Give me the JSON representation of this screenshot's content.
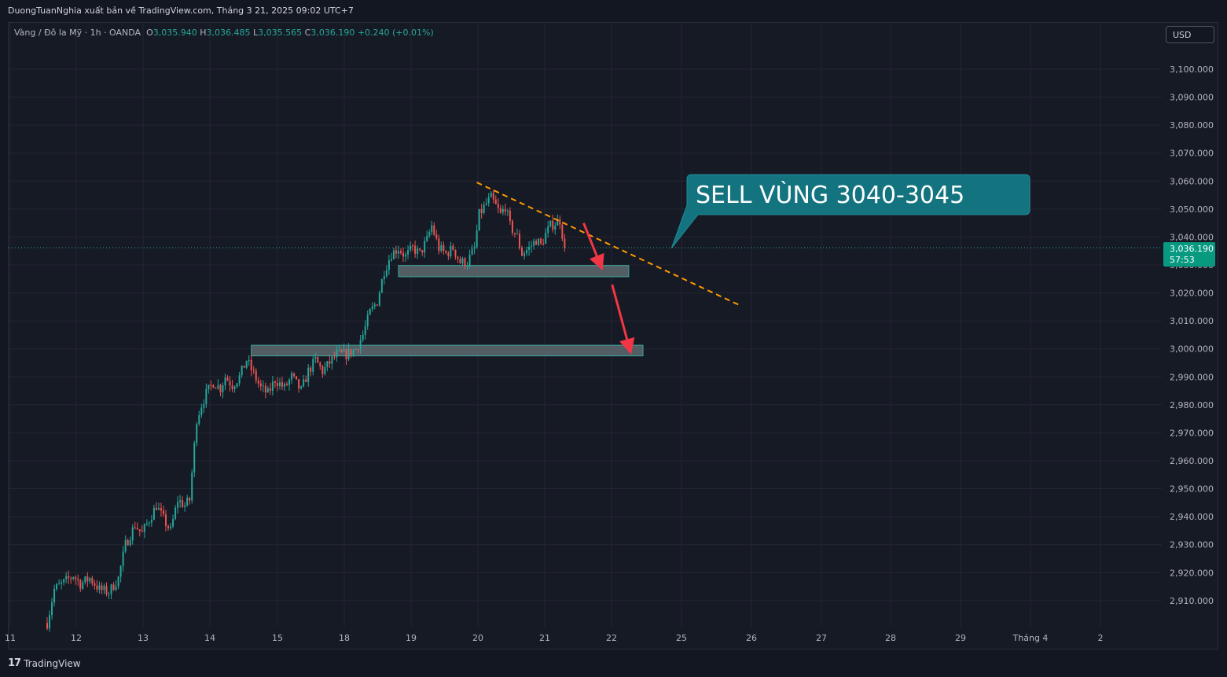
{
  "header": {
    "publisher_line": "DuongTuanNghia xuất bản về TradingView.com, Tháng 3 21, 2025 09:02 UTC+7"
  },
  "legend": {
    "symbol": "Vàng / Đô la Mỹ · 1h · OANDA",
    "o_label": "O",
    "o_value": "3,035.940",
    "h_label": "H",
    "h_value": "3,036.485",
    "l_label": "L",
    "l_value": "3,035.565",
    "c_label": "C",
    "c_value": "3,036.190",
    "change": "+0.240 (+0.01%)"
  },
  "currency_button": "USD",
  "price_tag": {
    "price": "3,036.190",
    "countdown": "57:53"
  },
  "annotation": {
    "callout_text": "SELL VÙNG 3040-3045"
  },
  "footer": {
    "brand": "TradingView"
  },
  "colors": {
    "up": "#26a69a",
    "down": "#ef5350",
    "background": "#161a25",
    "callout": "#137480",
    "trendline": "#ff9800",
    "arrow": "#f23645",
    "zone_fill": "#5d6a70"
  },
  "chart_data": {
    "type": "candlestick",
    "title": "",
    "xlabel": "",
    "ylabel": "",
    "ylim": [
      2900,
      3105
    ],
    "y_ticks": [
      2910,
      2920,
      2930,
      2940,
      2950,
      2960,
      2970,
      2980,
      2990,
      3000,
      3010,
      3020,
      3030,
      3040,
      3050,
      3060,
      3070,
      3080,
      3090,
      3100
    ],
    "y_tick_labels": [
      "2,910.000",
      "2,920.000",
      "2,930.000",
      "2,940.000",
      "2,950.000",
      "2,960.000",
      "2,970.000",
      "2,980.000",
      "2,990.000",
      "3,000.000",
      "3,010.000",
      "3,020.000",
      "3,030.000",
      "3,040.000",
      "3,050.000",
      "3,060.000",
      "3,070.000",
      "3,080.000",
      "3,090.000",
      "3,100.000"
    ],
    "x_ticks": [
      "11",
      "12",
      "13",
      "14",
      "15",
      "18",
      "19",
      "20",
      "21",
      "22",
      "25",
      "26",
      "27",
      "28",
      "29",
      "Tháng 4",
      "2"
    ],
    "current_price": 3036.19,
    "close_path": [
      [
        0,
        2902
      ],
      [
        3,
        2914
      ],
      [
        8,
        2917
      ],
      [
        11,
        2919
      ],
      [
        14,
        2916
      ],
      [
        18,
        2918
      ],
      [
        22,
        2914
      ],
      [
        26,
        2913
      ],
      [
        30,
        2918
      ],
      [
        33,
        2930
      ],
      [
        37,
        2937
      ],
      [
        40,
        2934
      ],
      [
        43,
        2939
      ],
      [
        46,
        2944
      ],
      [
        49,
        2939
      ],
      [
        52,
        2935
      ],
      [
        55,
        2946
      ],
      [
        58,
        2944
      ],
      [
        60,
        2946
      ],
      [
        63,
        2975
      ],
      [
        65,
        2980
      ],
      [
        67,
        2984
      ],
      [
        70,
        2988
      ],
      [
        73,
        2986
      ],
      [
        75,
        2990
      ],
      [
        78,
        2987
      ],
      [
        81,
        2990
      ],
      [
        84,
        2996
      ],
      [
        87,
        2991
      ],
      [
        90,
        2986
      ],
      [
        93,
        2984
      ],
      [
        96,
        2989
      ],
      [
        100,
        2986
      ],
      [
        103,
        2990
      ],
      [
        107,
        2985
      ],
      [
        110,
        2992
      ],
      [
        113,
        2996
      ],
      [
        116,
        2992
      ],
      [
        119,
        2995
      ],
      [
        122,
        2998
      ],
      [
        126,
        2998
      ],
      [
        130,
        3000
      ],
      [
        133,
        3005
      ],
      [
        136,
        3013
      ],
      [
        139,
        3017
      ],
      [
        142,
        3028
      ],
      [
        145,
        3034
      ],
      [
        148,
        3036
      ],
      [
        151,
        3033
      ],
      [
        154,
        3036
      ],
      [
        157,
        3034
      ],
      [
        160,
        3039
      ],
      [
        162,
        3044
      ],
      [
        165,
        3036
      ],
      [
        168,
        3034
      ],
      [
        171,
        3036
      ],
      [
        174,
        3031
      ],
      [
        177,
        3031
      ],
      [
        180,
        3036
      ],
      [
        182,
        3048
      ],
      [
        185,
        3052
      ],
      [
        187,
        3054
      ],
      [
        189,
        3051
      ],
      [
        191,
        3048
      ],
      [
        193,
        3051
      ],
      [
        195,
        3044
      ],
      [
        198,
        3040
      ],
      [
        200,
        3034
      ],
      [
        203,
        3036
      ],
      [
        206,
        3039
      ],
      [
        208,
        3037
      ],
      [
        210,
        3041
      ],
      [
        212,
        3044
      ],
      [
        214,
        3045
      ],
      [
        216,
        3046
      ],
      [
        218,
        3036
      ]
    ],
    "candle_index_range": [
      0,
      218
    ],
    "candle_count": 219,
    "zones": [
      {
        "from": 3025.8,
        "to": 3029.8,
        "start_index": 148,
        "end_index": 245
      },
      {
        "from": 2997.5,
        "to": 3001.3,
        "start_index": 86,
        "end_index": 251
      }
    ],
    "trendline": {
      "from": [
        181,
        3059.5
      ],
      "to": [
        292,
        3015.5
      ],
      "style": "dashed"
    },
    "arrows": [
      {
        "from": [
          226,
          3045
        ],
        "to": [
          234,
          3028
        ]
      },
      {
        "from": [
          238,
          3023
        ],
        "to": [
          246,
          2998
        ]
      }
    ],
    "callout_pointer_target": [
      263,
      3036
    ],
    "grid": true,
    "legend": "none"
  }
}
